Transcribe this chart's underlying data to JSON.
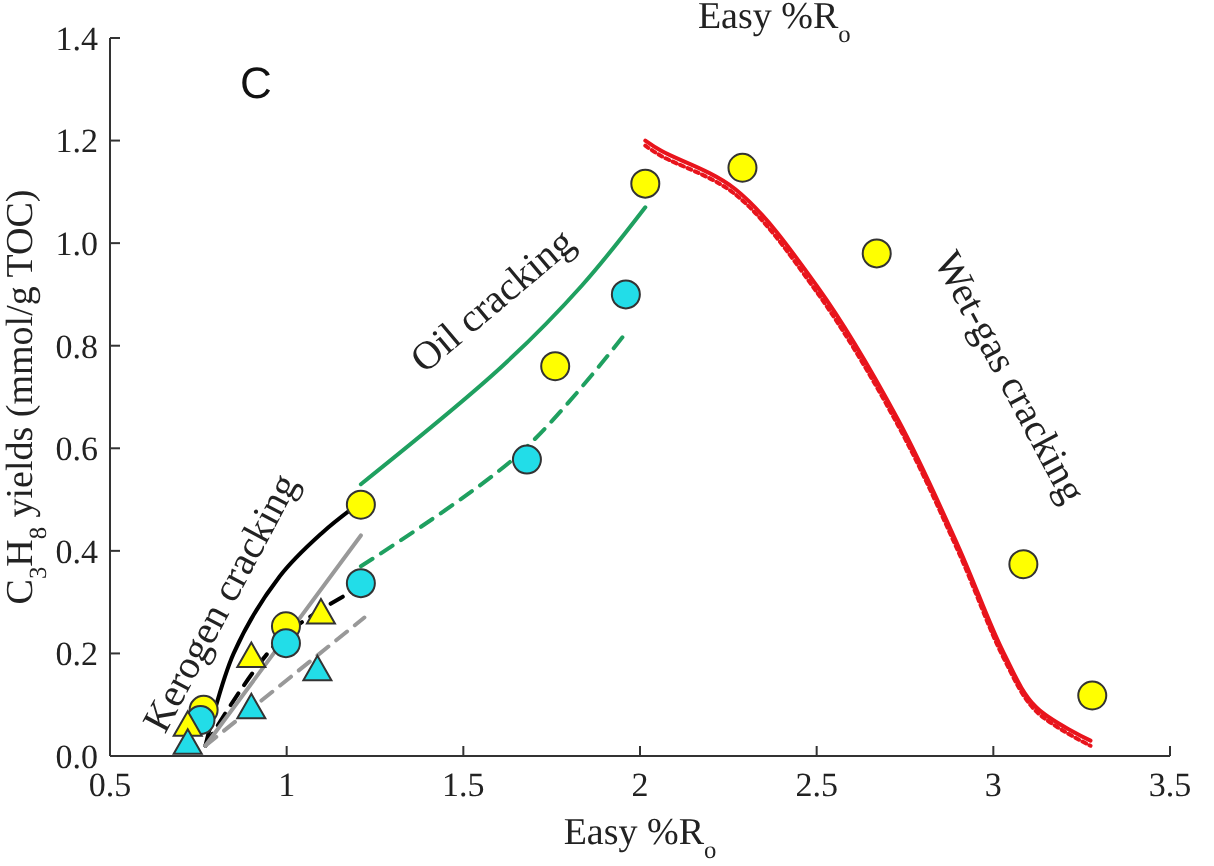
{
  "chart_data": {
    "type": "scatter",
    "title": "Easy %R$_{o}$",
    "xlabel": "Easy %R$_{o}$",
    "ylabel": "C$_{3}$H$_{8}$ yields (mmol/g TOC)",
    "xlim": [
      0.5,
      3.5
    ],
    "xticks": [
      0.5,
      1,
      1.5,
      2,
      2.5,
      3,
      3.5
    ],
    "ylim": [
      0,
      1.4
    ],
    "yticks": [
      {
        "value": 0,
        "label": "0.0"
      },
      0.2,
      0.4,
      0.6,
      0.8,
      {
        "value": 1,
        "label": "1.0"
      },
      1.2,
      1.4
    ],
    "grid": false,
    "annotations": [
      "C",
      "Kerogen cracking",
      "Oil cracking",
      "Wet-gas cracking"
    ],
    "series": [
      {
        "type": "line",
        "color": "#000000",
        "line_style": "solid",
        "x": [
          0.77,
          0.85,
          0.98,
          1.1,
          1.2
        ],
        "values": [
          0.02,
          0.2,
          0.35,
          0.435,
          0.49
        ]
      },
      {
        "type": "line",
        "color": "#000000",
        "line_style": "dashed",
        "x": [
          0.77,
          0.98,
          1.21
        ],
        "values": [
          0.02,
          0.226,
          0.33
        ]
      },
      {
        "type": "line",
        "color": "#999999",
        "line_style": "solid",
        "x": [
          0.77,
          1.21
        ],
        "values": [
          0.02,
          0.43
        ]
      },
      {
        "type": "line",
        "color": "#999999",
        "line_style": "dashed",
        "x": [
          0.77,
          1.22
        ],
        "values": [
          0.02,
          0.27
        ]
      },
      {
        "type": "line",
        "color": "#1fa060",
        "line_style": "solid",
        "x": [
          1.21,
          1.61,
          1.835,
          2.015
        ],
        "values": [
          0.53,
          0.76,
          0.917,
          1.07
        ]
      },
      {
        "type": "line",
        "color": "#1fa060",
        "line_style": "dashed",
        "x": [
          1.21,
          1.66,
          1.96
        ],
        "values": [
          0.37,
          0.59,
          0.825
        ]
      },
      {
        "type": "line",
        "color": "#e8141c",
        "line_style": "solid",
        "x": [
          2.015,
          2.06,
          2.27,
          2.5,
          2.73,
          2.9,
          3.03,
          3.12,
          3.275
        ],
        "values": [
          1.2,
          1.18,
          1.105,
          0.917,
          0.656,
          0.41,
          0.2,
          0.096,
          0.03
        ]
      },
      {
        "type": "line",
        "color": "#e8141c",
        "line_style": "dotted",
        "x": [
          2.015,
          2.06,
          2.27,
          2.5,
          2.73,
          2.9,
          3.03,
          3.12,
          3.275
        ],
        "values": [
          1.19,
          1.17,
          1.095,
          0.905,
          0.645,
          0.4,
          0.19,
          0.088,
          0.02
        ]
      },
      {
        "color": "#ffff00",
        "marker": "circle",
        "x": [
          0.765,
          0.998,
          1.21,
          1.76,
          2.015,
          2.29,
          2.67,
          3.085,
          3.28
        ],
        "values": [
          0.09,
          0.253,
          0.49,
          0.76,
          1.116,
          1.147,
          0.98,
          0.374,
          0.118
        ]
      },
      {
        "color": "#22dde8",
        "marker": "circle",
        "x": [
          0.756,
          0.998,
          1.21,
          1.68,
          1.96
        ],
        "values": [
          0.07,
          0.22,
          0.337,
          0.578,
          0.9
        ]
      },
      {
        "color": "#ffff00",
        "marker": "triangle",
        "x": [
          0.72,
          0.9,
          1.097
        ],
        "values": [
          0.06,
          0.194,
          0.279
        ]
      },
      {
        "color": "#22dde8",
        "marker": "triangle",
        "x": [
          0.72,
          0.9,
          1.087
        ],
        "values": [
          0.025,
          0.094,
          0.168
        ]
      }
    ]
  }
}
